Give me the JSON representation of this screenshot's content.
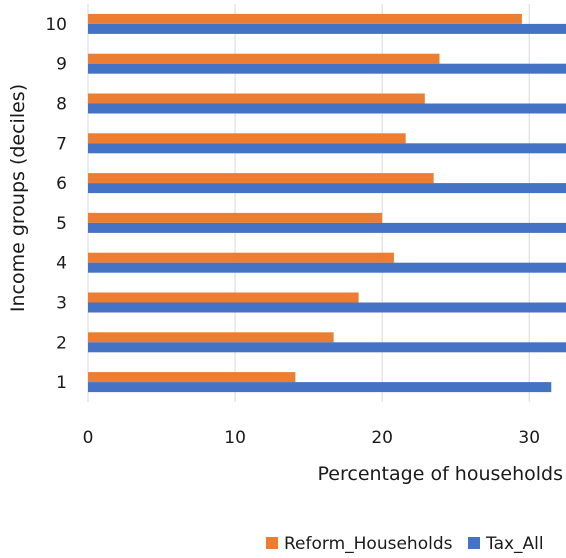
{
  "chart_data": {
    "type": "bar",
    "orientation": "horizontal",
    "categories": [
      "1",
      "2",
      "3",
      "4",
      "5",
      "6",
      "7",
      "8",
      "9",
      "10"
    ],
    "series": [
      {
        "name": "Reform_Households",
        "color": "#ED7D31",
        "values": [
          14.1,
          16.7,
          18.4,
          20.8,
          20.0,
          23.5,
          21.6,
          22.9,
          23.9,
          29.5
        ]
      },
      {
        "name": "Tax_All",
        "color": "#4472C4",
        "values": [
          31.5,
          32.5,
          32.5,
          32.5,
          32.5,
          32.5,
          32.5,
          32.5,
          32.5,
          32.5
        ]
      }
    ],
    "xlabel": "Percentage of households",
    "ylabel": "Income groups (deciles)",
    "xticks": [
      "0",
      "10",
      "20",
      "30"
    ],
    "xlim": [
      0,
      32.5
    ],
    "grid": "vertical",
    "legend_position": "bottom-right"
  }
}
